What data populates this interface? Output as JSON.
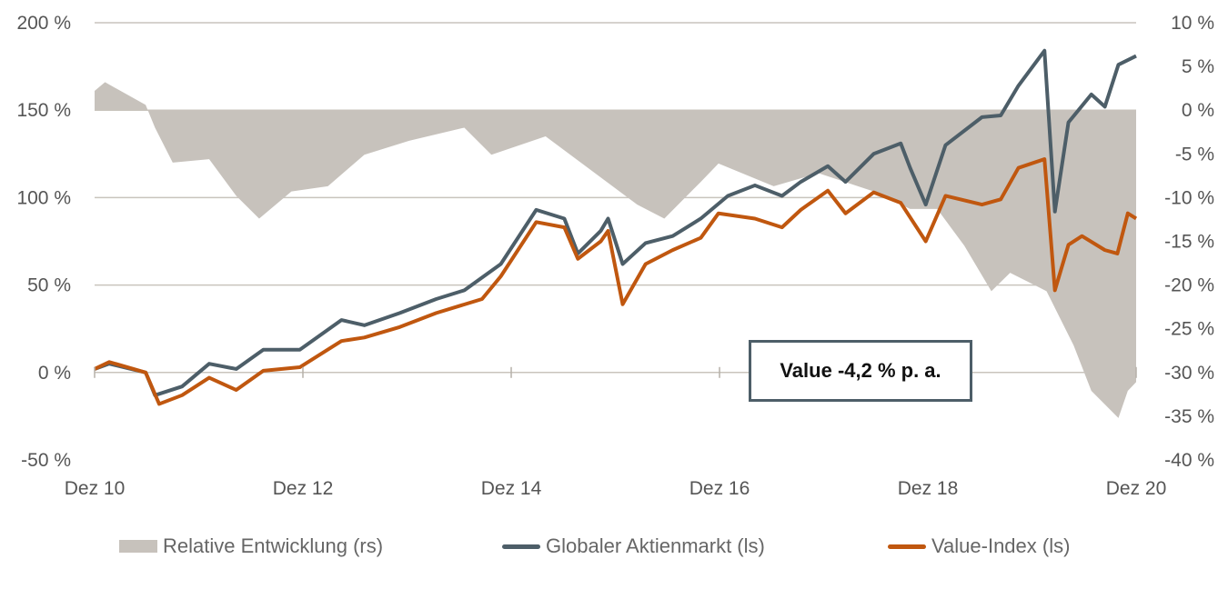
{
  "chart_data": {
    "type": "line",
    "title": "",
    "colors": {
      "relative": "#c7c2bc",
      "global": "#4d5e68",
      "value": "#c0570f"
    },
    "x_ticks": [
      {
        "x": 2010.92,
        "label": "Dez 10"
      },
      {
        "x": 2012.92,
        "label": "Dez 12"
      },
      {
        "x": 2014.92,
        "label": "Dez 14"
      },
      {
        "x": 2016.92,
        "label": "Dez 16"
      },
      {
        "x": 2018.92,
        "label": "Dez 18"
      },
      {
        "x": 2020.92,
        "label": "Dez 20"
      }
    ],
    "xlim": [
      2010.92,
      2020.92
    ],
    "y_left": {
      "ticks": [
        "200 %",
        "150 %",
        "100 %",
        "50 %",
        "0 %",
        "-50 %"
      ],
      "values": [
        200,
        150,
        100,
        50,
        0,
        -50
      ],
      "ylim": [
        -50,
        200
      ]
    },
    "y_right": {
      "ticks": [
        "10 %",
        "5 %",
        "0 %",
        "-5 %",
        "-10 %",
        "-15 %",
        "-20 %",
        "-25 %",
        "-30 %",
        "-35 %",
        "-40 %"
      ],
      "values": [
        10,
        5,
        0,
        -5,
        -10,
        -15,
        -20,
        -25,
        -30,
        -35,
        -40
      ],
      "ylim": [
        -40,
        10
      ]
    },
    "annotation": "Value -4,2 % p. a.",
    "legend": "bottom",
    "series": [
      {
        "name": "Relative Entwicklung (rs)",
        "kind": "area",
        "axis": "right",
        "x": [
          2010.92,
          2011.02,
          2011.41,
          2011.5,
          2011.67,
          2012.02,
          2012.28,
          2012.5,
          2012.81,
          2013.16,
          2013.51,
          2013.94,
          2014.47,
          2014.73,
          2015.25,
          2015.6,
          2016.13,
          2016.39,
          2016.74,
          2016.91,
          2017.44,
          2017.87,
          2018.4,
          2018.75,
          2019.01,
          2019.27,
          2019.53,
          2019.71,
          2020.06,
          2020.32,
          2020.49,
          2020.75,
          2020.84,
          2020.92
        ],
        "y": [
          2.2,
          3.2,
          0.6,
          -2,
          -6,
          -5.6,
          -9.8,
          -12.4,
          -9.3,
          -8.7,
          -5.1,
          -3.5,
          -2,
          -5.1,
          -3,
          -6.1,
          -10.8,
          -12.4,
          -8.2,
          -6.1,
          -8.7,
          -7.2,
          -9.3,
          -11.3,
          -11.3,
          -15.5,
          -20.7,
          -18.6,
          -20.7,
          -26.9,
          -32.1,
          -35.2,
          -32.1,
          -31.1
        ]
      },
      {
        "name": "Globaler Aktienmarkt (ls)",
        "kind": "line",
        "axis": "left",
        "x": [
          2010.92,
          2011.06,
          2011.41,
          2011.5,
          2011.76,
          2012.02,
          2012.28,
          2012.54,
          2012.89,
          2013.29,
          2013.51,
          2013.85,
          2014.2,
          2014.47,
          2014.82,
          2015.16,
          2015.43,
          2015.56,
          2015.78,
          2015.85,
          2015.99,
          2016.21,
          2016.47,
          2016.74,
          2017.0,
          2017.26,
          2017.52,
          2017.7,
          2017.96,
          2018.13,
          2018.4,
          2018.66,
          2018.75,
          2018.9,
          2019.09,
          2019.44,
          2019.62,
          2019.79,
          2020.04,
          2020.14,
          2020.27,
          2020.49,
          2020.62,
          2020.75,
          2020.92
        ],
        "y": [
          2,
          5,
          0,
          -13,
          -8,
          5,
          2,
          13,
          13,
          30,
          27,
          34,
          42,
          47,
          62,
          93,
          88,
          68,
          81,
          88,
          62,
          74,
          78,
          88,
          101,
          107,
          101,
          109,
          118,
          109,
          125,
          131,
          117,
          96,
          130,
          146,
          147,
          164,
          184,
          92,
          143,
          159,
          152,
          176,
          181
        ]
      },
      {
        "name": "Value-Index (ls)",
        "kind": "line",
        "axis": "left",
        "x": [
          2010.92,
          2011.06,
          2011.41,
          2011.54,
          2011.76,
          2012.02,
          2012.28,
          2012.54,
          2012.89,
          2013.29,
          2013.51,
          2013.85,
          2014.2,
          2014.64,
          2014.82,
          2015.16,
          2015.43,
          2015.56,
          2015.78,
          2015.85,
          2015.99,
          2016.21,
          2016.47,
          2016.74,
          2016.91,
          2017.26,
          2017.52,
          2017.7,
          2017.96,
          2018.13,
          2018.4,
          2018.66,
          2018.9,
          2019.09,
          2019.44,
          2019.62,
          2019.79,
          2020.04,
          2020.14,
          2020.27,
          2020.4,
          2020.62,
          2020.74,
          2020.84,
          2020.92
        ],
        "y": [
          2,
          6,
          0,
          -18,
          -13,
          -3,
          -10,
          1,
          3,
          18,
          20,
          26,
          34,
          42,
          55,
          86,
          83,
          65,
          75,
          81,
          39,
          62,
          70,
          77,
          91,
          88,
          83,
          93,
          104,
          91,
          103,
          97,
          75,
          101,
          96,
          99,
          117,
          122,
          47,
          73,
          78,
          70,
          68,
          91,
          88
        ]
      }
    ]
  }
}
